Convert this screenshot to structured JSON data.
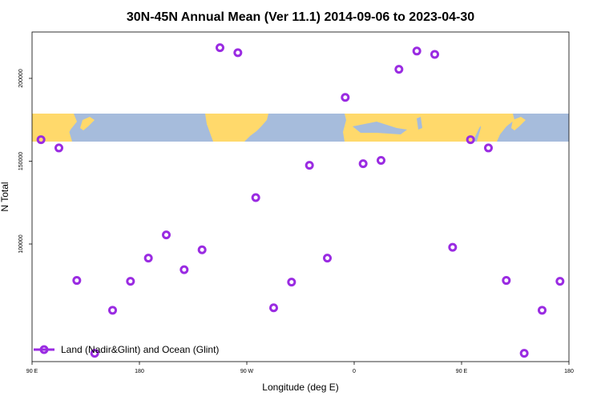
{
  "chart_data": {
    "type": "scatter",
    "title": "30N-45N Annual Mean (Ver 11.1)   2014-09-06 to 2023-04-30",
    "xlabel": "Longitude (deg E)",
    "ylabel": "N Total",
    "x_tick_labels": [
      "90 E",
      "180",
      "90 W",
      "0",
      "90 E",
      "180"
    ],
    "x_tick_values": [
      90,
      180,
      270,
      360,
      450,
      540
    ],
    "xlim": [
      90,
      540
    ],
    "y_tick_labels": [
      "100000",
      "150000",
      "200000"
    ],
    "y_tick_values": [
      100000,
      150000,
      200000
    ],
    "ylim": [
      29000,
      228000
    ],
    "grid": false,
    "legend_position": "bottom-left",
    "background_map": "world land/ocean band, 30N-45N",
    "colors": {
      "series": "#9a2be2",
      "land": "#ffd96b",
      "ocean": "#a6bcdc"
    },
    "series": [
      {
        "name": "Land (Nadir&Glint) and Ocean (Glint)",
        "x": [
          97.5,
          112.5,
          127.5,
          142.5,
          157.5,
          172.5,
          187.5,
          202.5,
          217.5,
          232.5,
          247.5,
          262.5,
          277.5,
          292.5,
          307.5,
          322.5,
          337.5,
          352.5,
          367.5,
          382.5,
          397.5,
          412.5,
          427.5,
          442.5,
          457.5,
          472.5,
          487.5,
          502.5,
          517.5,
          532.5
        ],
        "y": [
          163000,
          158000,
          78000,
          34000,
          60000,
          77500,
          91500,
          105500,
          84500,
          96500,
          218500,
          215500,
          128000,
          61500,
          77000,
          147500,
          91500,
          188500,
          148500,
          150500,
          205500,
          216500,
          214500,
          98000,
          163000,
          158000,
          78000,
          34000,
          60000,
          77500
        ]
      }
    ]
  }
}
